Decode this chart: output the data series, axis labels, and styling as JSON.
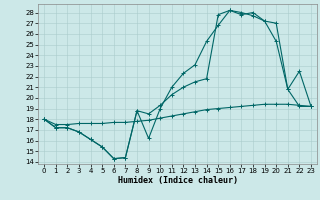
{
  "xlabel": "Humidex (Indice chaleur)",
  "bg_color": "#cce8e8",
  "grid_color": "#aacccc",
  "line_color": "#006666",
  "xlim": [
    -0.5,
    23.5
  ],
  "ylim": [
    13.8,
    28.8
  ],
  "yticks": [
    14,
    15,
    16,
    17,
    18,
    19,
    20,
    21,
    22,
    23,
    24,
    25,
    26,
    27,
    28
  ],
  "xticks": [
    0,
    1,
    2,
    3,
    4,
    5,
    6,
    7,
    8,
    9,
    10,
    11,
    12,
    13,
    14,
    15,
    16,
    17,
    18,
    19,
    20,
    21,
    22,
    23
  ],
  "line1_x": [
    0,
    1,
    2,
    3,
    4,
    5,
    6,
    7,
    8,
    9,
    10,
    11,
    12,
    13,
    14,
    15,
    16,
    17,
    18,
    19,
    20,
    21,
    22,
    23
  ],
  "line1_y": [
    18.0,
    17.2,
    17.2,
    16.8,
    16.1,
    15.4,
    14.3,
    14.4,
    18.8,
    16.2,
    19.0,
    21.0,
    22.3,
    23.1,
    25.3,
    26.8,
    28.2,
    27.8,
    28.0,
    27.2,
    25.3,
    20.8,
    22.5,
    19.2
  ],
  "line2_x": [
    0,
    1,
    2,
    3,
    4,
    5,
    6,
    7,
    8,
    9,
    10,
    11,
    12,
    13,
    14,
    15,
    16,
    17,
    18,
    19,
    20,
    21,
    22,
    23
  ],
  "line2_y": [
    18.0,
    17.2,
    17.2,
    16.8,
    16.1,
    15.4,
    14.3,
    14.4,
    18.8,
    18.5,
    19.3,
    20.3,
    21.0,
    21.5,
    21.8,
    27.8,
    28.2,
    28.0,
    27.7,
    27.2,
    27.0,
    20.8,
    19.2,
    19.2
  ],
  "line3_x": [
    0,
    1,
    2,
    3,
    4,
    5,
    6,
    7,
    8,
    9,
    10,
    11,
    12,
    13,
    14,
    15,
    16,
    17,
    18,
    19,
    20,
    21,
    22,
    23
  ],
  "line3_y": [
    18.0,
    17.5,
    17.5,
    17.6,
    17.6,
    17.6,
    17.7,
    17.7,
    17.8,
    17.9,
    18.1,
    18.3,
    18.5,
    18.7,
    18.9,
    19.0,
    19.1,
    19.2,
    19.3,
    19.4,
    19.4,
    19.4,
    19.3,
    19.2
  ],
  "tick_fontsize": 5,
  "xlabel_fontsize": 6,
  "marker_size": 2.5,
  "line_width": 0.8
}
